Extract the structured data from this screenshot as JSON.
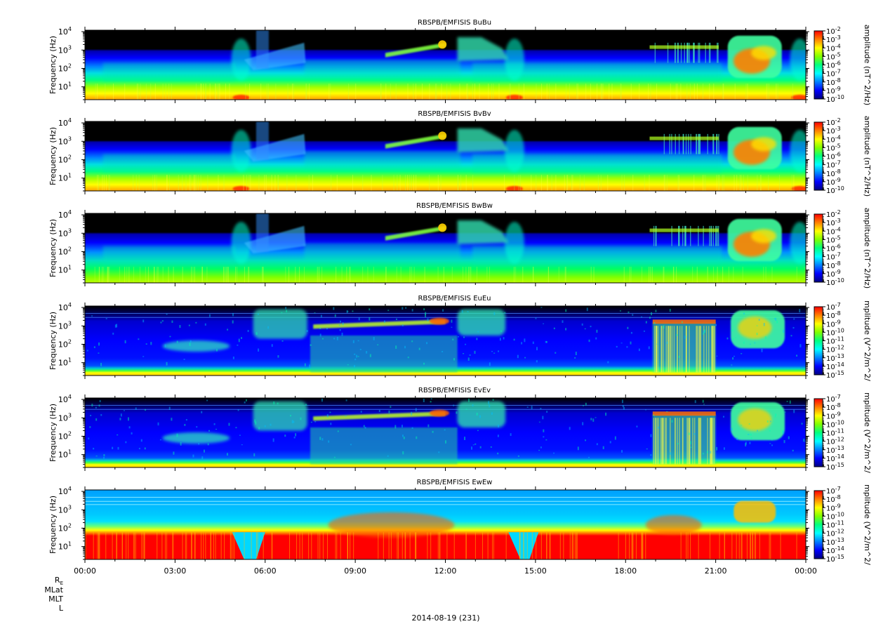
{
  "chart_data": {
    "type": "heatmap",
    "title": "",
    "xlabel": "",
    "x_ticks": [
      "00:00",
      "03:00",
      "06:00",
      "09:00",
      "12:00",
      "15:00",
      "18:00",
      "21:00",
      "00:00"
    ],
    "x_range_hours": [
      0,
      24
    ],
    "date_label": "2014-08-19 (231)",
    "ephemeris_labels": [
      "R",
      "MLat",
      "MLT",
      "L"
    ],
    "ephemeris_subscript": "E",
    "ylabel": "Frequency (Hz)",
    "y_scale": "log",
    "y_range_hz": [
      2,
      12000
    ],
    "y_tick_base": "10",
    "y_tick_exponents": [
      "1",
      "2",
      "3",
      "4"
    ],
    "panels": [
      {
        "title": "RBSPB/EMFISIS  BuBu",
        "colorbar_label": "amplitude (nT^2/Hz)",
        "colorbar_base": "10",
        "colorbar_exponents": [
          "-2",
          "-3",
          "-4",
          "-5",
          "-6",
          "-7",
          "-8",
          "-9",
          "-10"
        ],
        "zlim": [
          1e-10,
          0.01
        ],
        "kind": "B"
      },
      {
        "title": "RBSPB/EMFISIS  BvBv",
        "colorbar_label": "amplitude (nT^2/Hz)",
        "colorbar_base": "10",
        "colorbar_exponents": [
          "-2",
          "-3",
          "-4",
          "-5",
          "-6",
          "-7",
          "-8",
          "-9",
          "-10"
        ],
        "zlim": [
          1e-10,
          0.01
        ],
        "kind": "B"
      },
      {
        "title": "RBSPB/EMFISIS  BwBw",
        "colorbar_label": "amplitude (nT^2/Hz)",
        "colorbar_base": "10",
        "colorbar_exponents": [
          "-2",
          "-3",
          "-4",
          "-5",
          "-6",
          "-7",
          "-8",
          "-9",
          "-10"
        ],
        "zlim": [
          1e-10,
          0.01
        ],
        "kind": "B"
      },
      {
        "title": "RBSPB/EMFISIS  EuEu",
        "colorbar_label": "mplitude (V^2/m^2/",
        "colorbar_base": "10",
        "colorbar_exponents": [
          "-7",
          "-8",
          "-9",
          "-10",
          "-11",
          "-12",
          "-13",
          "-14",
          "-15"
        ],
        "zlim": [
          1e-15,
          1e-07
        ],
        "kind": "E"
      },
      {
        "title": "RBSPB/EMFISIS  EvEv",
        "colorbar_label": "mplitude (V^2/m^2/",
        "colorbar_base": "10",
        "colorbar_exponents": [
          "-7",
          "-8",
          "-9",
          "-10",
          "-11",
          "-12",
          "-13",
          "-14",
          "-15"
        ],
        "zlim": [
          1e-15,
          1e-07
        ],
        "kind": "E"
      },
      {
        "title": "RBSPB/EMFISIS  EwEw",
        "colorbar_label": "mplitude (V^2/m^2/",
        "colorbar_base": "10",
        "colorbar_exponents": [
          "-7",
          "-8",
          "-9",
          "-10",
          "-11",
          "-12",
          "-13",
          "-14",
          "-15"
        ],
        "zlim": [
          1e-15,
          1e-07
        ],
        "kind": "Ew"
      }
    ],
    "colormap": [
      "#000080",
      "#0000ff",
      "#0080ff",
      "#00ffff",
      "#00ff80",
      "#80ff00",
      "#ffff00",
      "#ff8000",
      "#ff0000"
    ],
    "features": {
      "chorus_band_hours": [
        10.2,
        12.0
      ],
      "hiss_blob_hours": [
        21.4,
        23.2
      ],
      "perigee_hours": [
        5.2,
        14.3,
        23.8
      ],
      "emic_burst_hours": [
        19.0,
        21.0
      ]
    }
  }
}
